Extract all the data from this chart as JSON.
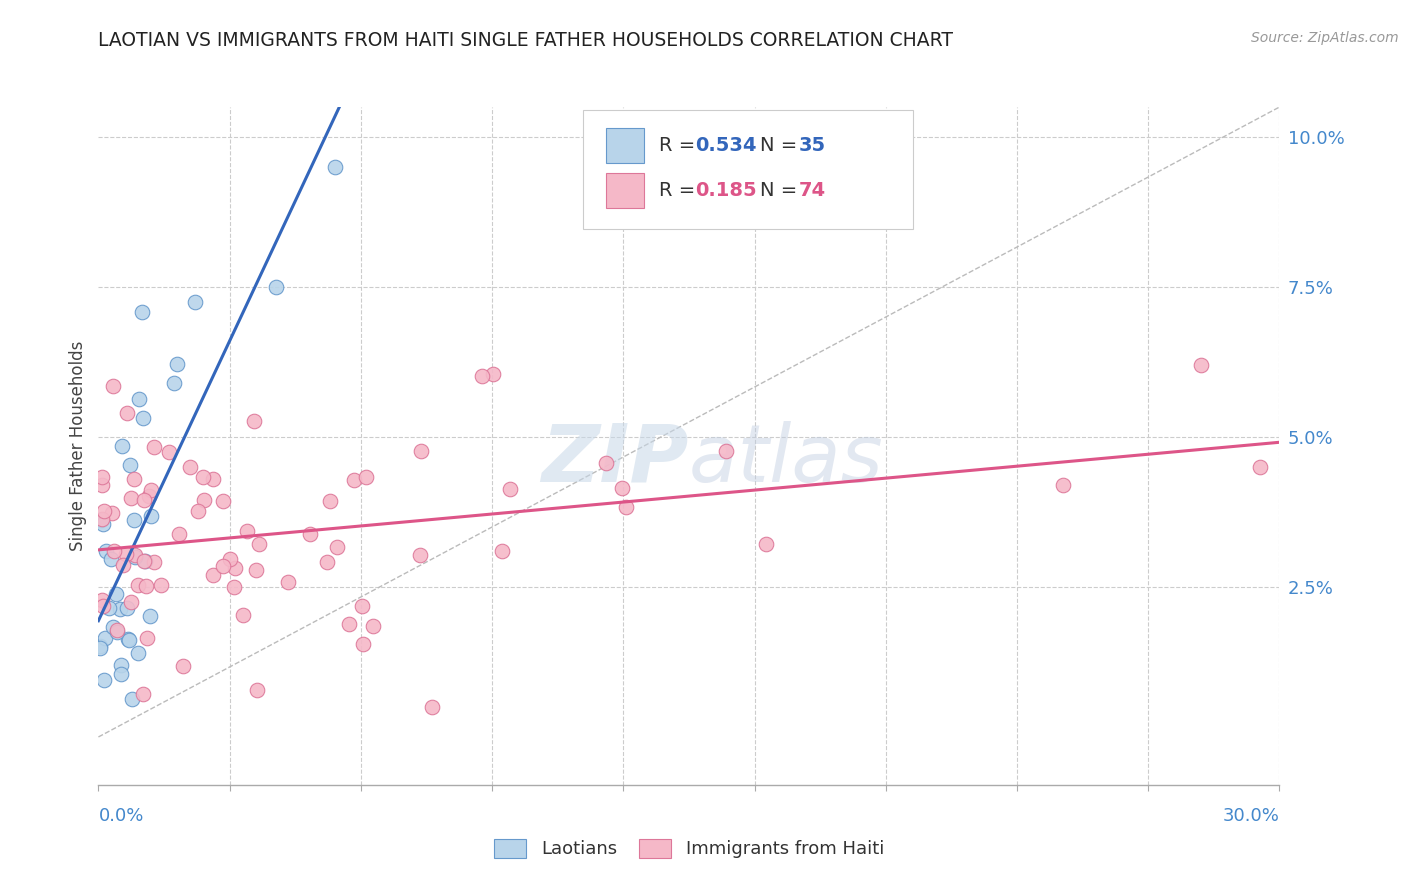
{
  "title": "LAOTIAN VS IMMIGRANTS FROM HAITI SINGLE FATHER HOUSEHOLDS CORRELATION CHART",
  "source": "Source: ZipAtlas.com",
  "ylabel": "Single Father Households",
  "ytick_labels": [
    "",
    "2.5%",
    "5.0%",
    "7.5%",
    "10.0%"
  ],
  "ytick_vals": [
    0.0,
    0.025,
    0.05,
    0.075,
    0.1
  ],
  "xlim": [
    0.0,
    0.3
  ],
  "ylim": [
    -0.008,
    0.105
  ],
  "laotian_fill": "#b8d4ea",
  "laotian_edge": "#6699cc",
  "haiti_fill": "#f5b8c8",
  "haiti_edge": "#dd7799",
  "laotian_line_color": "#3366bb",
  "haiti_line_color": "#dd5588",
  "R_laotian": 0.534,
  "N_laotian": 35,
  "R_haiti": 0.185,
  "N_haiti": 74,
  "watermark_color": "#c8d8e8",
  "grid_color": "#cccccc",
  "background_color": "#ffffff",
  "ytick_color": "#4488cc",
  "xlabel_color": "#4488cc",
  "title_color": "#222222",
  "source_color": "#999999"
}
